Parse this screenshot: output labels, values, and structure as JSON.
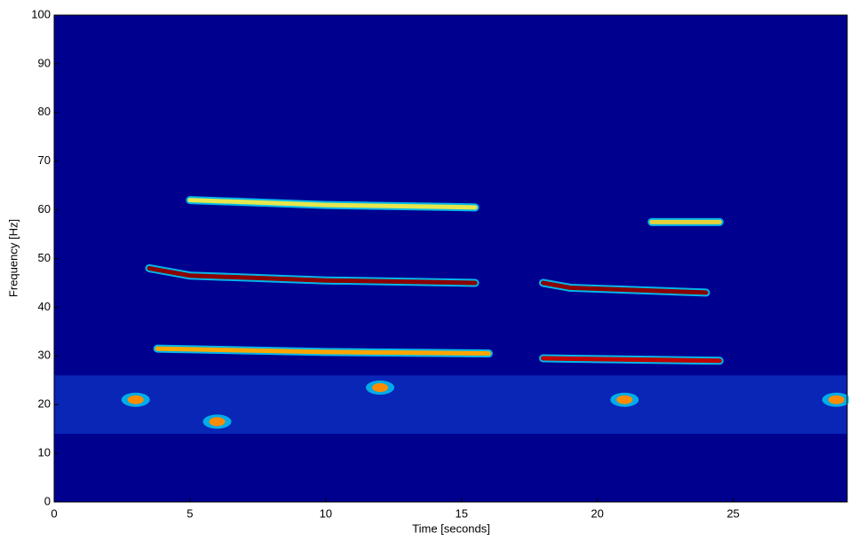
{
  "chart_data": {
    "type": "spectrogram",
    "xlabel": "Time [seconds]",
    "ylabel": "Frequency [Hz]",
    "xlim": [
      0,
      29.2
    ],
    "ylim": [
      0,
      100
    ],
    "xticks": [
      0,
      5,
      10,
      15,
      20,
      25
    ],
    "yticks": [
      0,
      10,
      20,
      30,
      40,
      50,
      60,
      70,
      80,
      90,
      100
    ],
    "background": "#00008f",
    "series": [
      {
        "color": "#8b0000",
        "x": [
          3.5,
          5,
          10,
          15.5
        ],
        "values": [
          48,
          46.5,
          45.5,
          45
        ]
      },
      {
        "color": "#ffa500",
        "x": [
          3.8,
          10,
          16
        ],
        "values": [
          31.5,
          30.8,
          30.5
        ]
      },
      {
        "color": "#e6e64d",
        "x": [
          5,
          10,
          15.5
        ],
        "values": [
          62,
          61,
          60.5
        ]
      },
      {
        "color": "#8b0000",
        "x": [
          18,
          19,
          24
        ],
        "values": [
          45,
          44,
          43
        ]
      },
      {
        "color": "#c00000",
        "x": [
          18,
          24.5
        ],
        "values": [
          29.5,
          29
        ]
      },
      {
        "color": "#e6d23c",
        "x": [
          22,
          24.5
        ],
        "values": [
          57.5,
          57.5
        ]
      }
    ],
    "spots": {
      "color": "#ff8c00",
      "x": [
        6,
        12,
        21,
        28.8,
        3
      ],
      "values": [
        16.5,
        23.5,
        21,
        21,
        21
      ]
    }
  }
}
